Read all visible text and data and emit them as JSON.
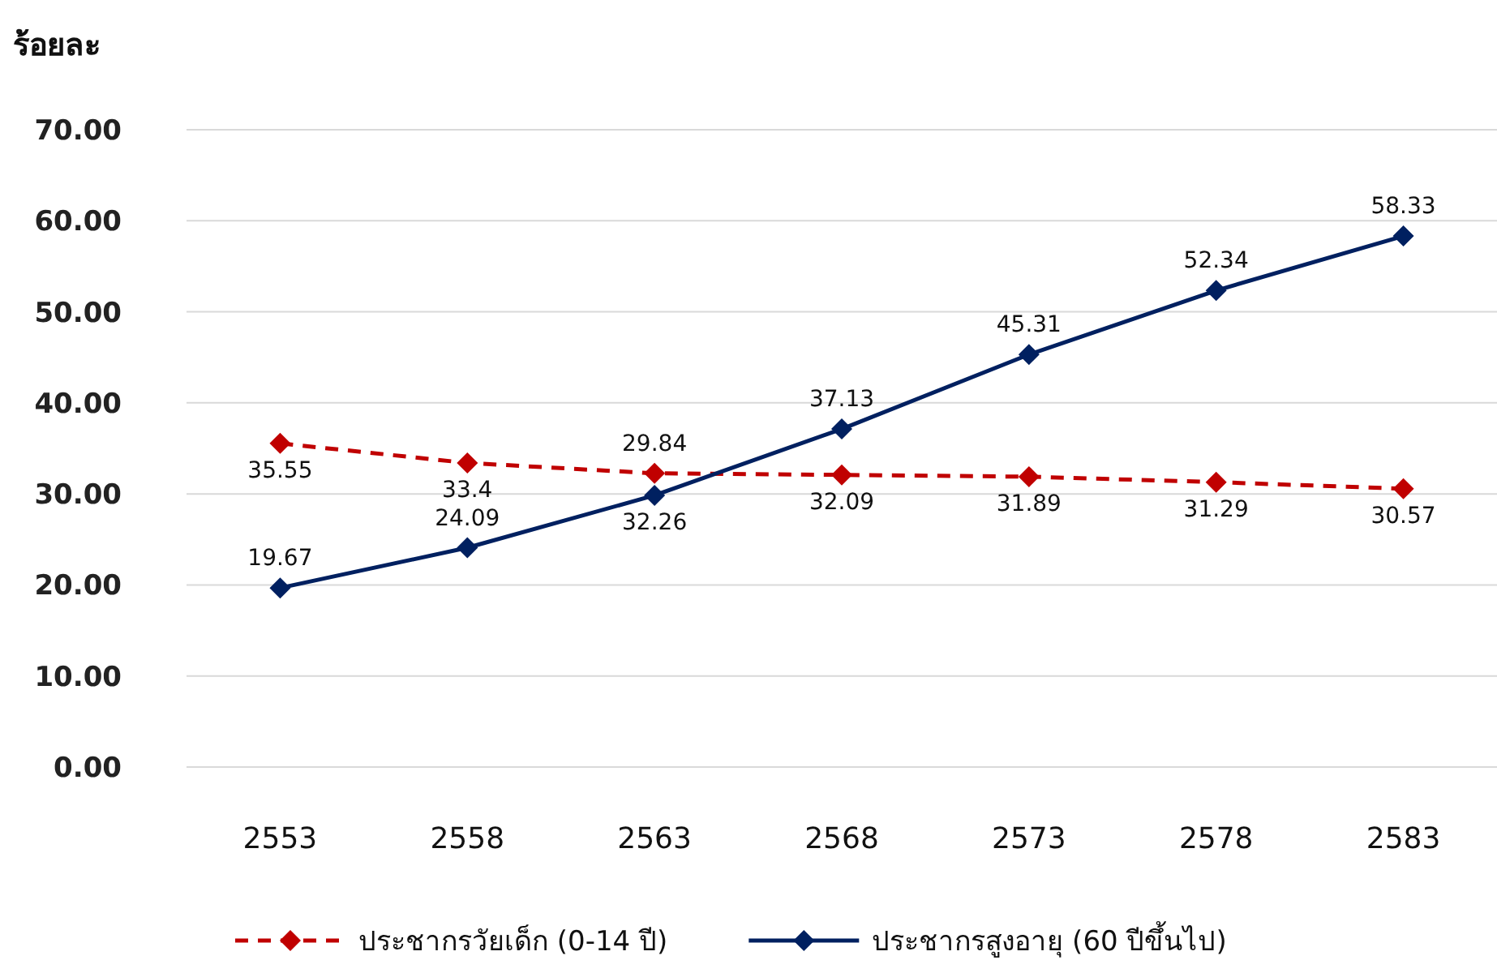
{
  "chart_data": {
    "type": "line",
    "ylabel": "ร้อยละ",
    "categories": [
      "2553",
      "2558",
      "2563",
      "2568",
      "2573",
      "2578",
      "2583"
    ],
    "series": [
      {
        "name": "ประชากรวัยเด็ก (0-14 ปี)",
        "color": "#c00000",
        "line_style": "dashed",
        "values": [
          35.55,
          33.4,
          32.26,
          32.09,
          31.89,
          31.29,
          30.57
        ]
      },
      {
        "name": "ประชากรสูงอายุ (60 ปีขึ้นไป)",
        "color": "#002060",
        "line_style": "solid",
        "values": [
          19.67,
          24.09,
          29.84,
          37.13,
          45.31,
          52.34,
          58.33
        ]
      }
    ],
    "ylim": [
      0,
      70
    ],
    "yticks": [
      {
        "value": 0,
        "label": "0.00"
      },
      {
        "value": 10,
        "label": "10.00"
      },
      {
        "value": 20,
        "label": "20.00"
      },
      {
        "value": 30,
        "label": "30.00"
      },
      {
        "value": 40,
        "label": "40.00"
      },
      {
        "value": 50,
        "label": "50.00"
      },
      {
        "value": 60,
        "label": "60.00"
      },
      {
        "value": 70,
        "label": "70.00"
      }
    ],
    "grid": "y",
    "marker": "diamond",
    "data_labels": true,
    "legend": "bottom"
  }
}
